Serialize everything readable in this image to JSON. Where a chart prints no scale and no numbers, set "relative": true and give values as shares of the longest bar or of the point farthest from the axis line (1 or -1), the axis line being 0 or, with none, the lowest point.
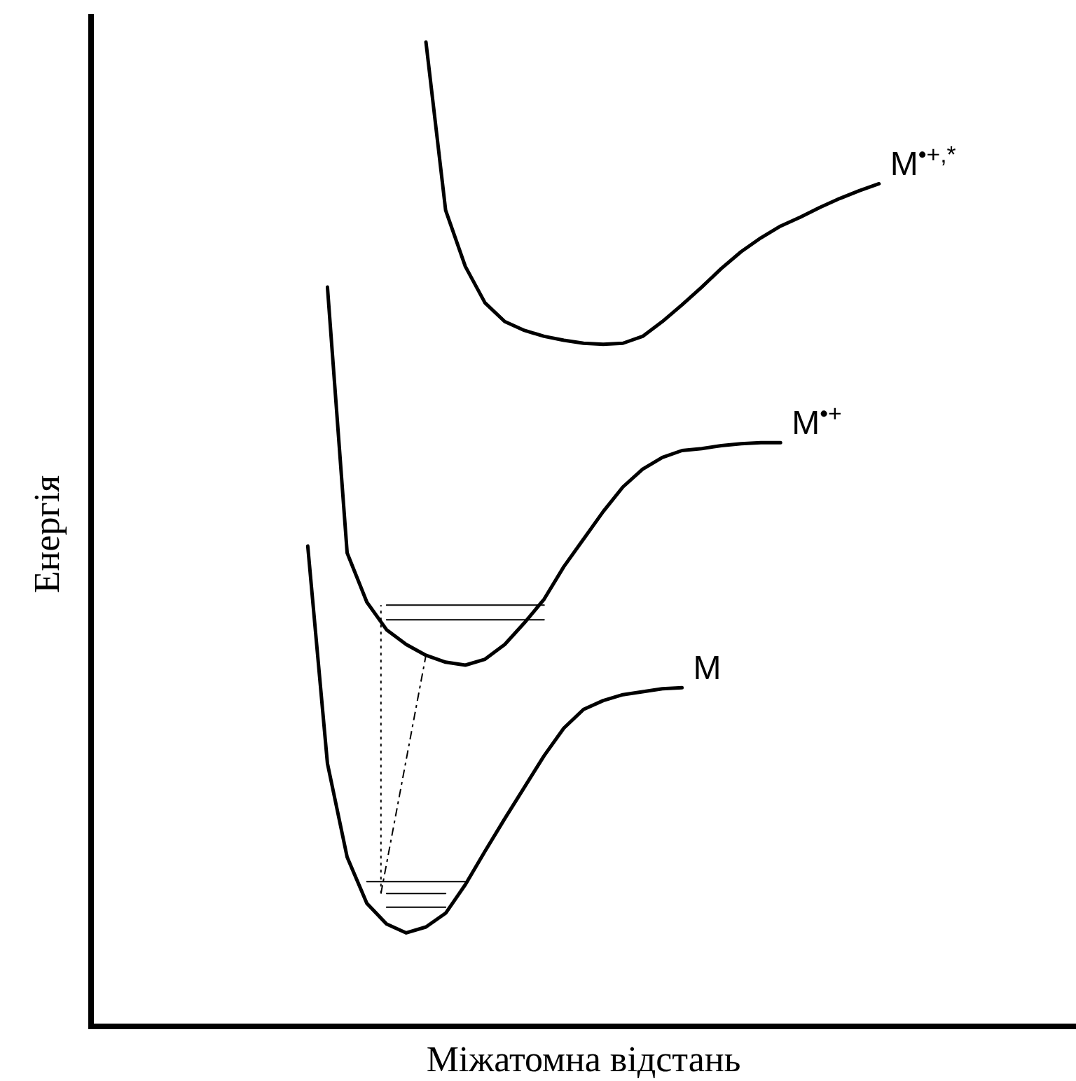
{
  "chart_data": {
    "type": "line",
    "relative": true,
    "xlabel": "Міжатомна відстань",
    "ylabel": "Енергія",
    "categories": [
      null,
      null,
      null,
      null,
      null,
      null,
      null,
      null,
      null,
      null,
      null,
      null,
      null,
      null,
      null,
      null,
      null,
      null,
      null,
      null,
      null,
      null,
      null,
      null,
      null,
      null,
      null,
      null,
      null,
      null,
      null,
      null,
      null,
      null,
      null,
      null,
      null,
      null,
      null,
      null,
      null,
      null,
      null,
      null,
      null,
      null,
      null,
      null,
      null,
      null,
      null
    ],
    "series": [
      {
        "name": "M",
        "color": "#000000",
        "values": [
          null,
          null,
          null,
          null,
          null,
          null,
          null,
          null,
          null,
          null,
          null,
          0.488,
          0.267,
          0.172,
          0.125,
          0.104,
          0.095,
          0.101,
          0.115,
          0.144,
          0.178,
          0.211,
          0.243,
          0.275,
          0.303,
          0.322,
          0.331,
          0.337,
          0.34,
          0.343,
          0.344,
          null,
          null,
          null,
          null,
          null,
          null,
          null,
          null,
          null,
          null,
          null,
          null,
          null,
          null,
          null,
          null,
          null,
          null,
          null,
          null
        ]
      },
      {
        "name": "M$^{•+}$",
        "color": "#000000",
        "values": [
          null,
          null,
          null,
          null,
          null,
          null,
          null,
          null,
          null,
          null,
          null,
          null,
          0.751,
          0.481,
          0.431,
          0.403,
          0.388,
          0.377,
          0.37,
          0.367,
          0.373,
          0.388,
          0.41,
          0.434,
          0.467,
          0.495,
          0.523,
          0.548,
          0.566,
          0.578,
          0.585,
          0.587,
          0.59,
          0.592,
          0.593,
          0.593,
          null,
          null,
          null,
          null,
          null,
          null,
          null,
          null,
          null,
          null,
          null,
          null,
          null,
          null,
          null
        ]
      },
      {
        "name": "M$^{•+,*}$",
        "color": "#000000",
        "values": [
          null,
          null,
          null,
          null,
          null,
          null,
          null,
          null,
          null,
          null,
          null,
          null,
          null,
          null,
          null,
          null,
          null,
          1,
          0.829,
          0.772,
          0.735,
          0.716,
          0.707,
          0.701,
          0.697,
          0.694,
          0.693,
          0.694,
          0.701,
          0.716,
          0.733,
          0.751,
          0.77,
          0.787,
          0.801,
          0.813,
          0.822,
          0.832,
          0.841,
          0.849,
          0.856,
          null,
          null,
          null,
          null,
          null,
          null,
          null,
          null,
          null,
          null
        ]
      },
      {
        "color": "#000000",
        "values": [
          null,
          null,
          null,
          null,
          null,
          null,
          null,
          null,
          null,
          null,
          null,
          null,
          null,
          null,
          null,
          0.428,
          0.428,
          0.428,
          0.428,
          0.428,
          0.428,
          0.428,
          0.428,
          0.428,
          null,
          null,
          null,
          null,
          null,
          null,
          null,
          null,
          null,
          null,
          null,
          null,
          null,
          null,
          null,
          null,
          null,
          null,
          null,
          null,
          null,
          null,
          null,
          null,
          null,
          null,
          null
        ]
      },
      {
        "color": "#000000",
        "values": [
          null,
          null,
          null,
          null,
          null,
          null,
          null,
          null,
          null,
          null,
          null,
          null,
          null,
          null,
          null,
          0.413,
          0.413,
          0.413,
          0.413,
          0.413,
          0.413,
          0.413,
          0.413,
          0.413,
          null,
          null,
          null,
          null,
          null,
          null,
          null,
          null,
          null,
          null,
          null,
          null,
          null,
          null,
          null,
          null,
          null,
          null,
          null,
          null,
          null,
          null,
          null,
          null,
          null,
          null,
          null
        ]
      },
      {
        "color": "#000000",
        "values": [
          null,
          null,
          null,
          null,
          null,
          null,
          null,
          null,
          null,
          null,
          null,
          null,
          null,
          null,
          0.147,
          0.147,
          0.147,
          0.147,
          0.147,
          0.147,
          null,
          null,
          null,
          null,
          null,
          null,
          null,
          null,
          null,
          null,
          null,
          null,
          null,
          null,
          null,
          null,
          null,
          null,
          null,
          null,
          null,
          null,
          null,
          null,
          null,
          null,
          null,
          null,
          null,
          null,
          null
        ]
      },
      {
        "color": "#000000",
        "values": [
          null,
          null,
          null,
          null,
          null,
          null,
          null,
          null,
          null,
          null,
          null,
          null,
          null,
          null,
          null,
          0.135,
          0.135,
          0.135,
          0.135,
          null,
          null,
          null,
          null,
          null,
          null,
          null,
          null,
          null,
          null,
          null,
          null,
          null,
          null,
          null,
          null,
          null,
          null,
          null,
          null,
          null,
          null,
          null,
          null,
          null,
          null,
          null,
          null,
          null,
          null,
          null,
          null
        ]
      },
      {
        "color": "#000000",
        "values": [
          null,
          null,
          null,
          null,
          null,
          null,
          null,
          null,
          null,
          null,
          null,
          null,
          null,
          null,
          null,
          0.121,
          0.121,
          0.121,
          0.121,
          null,
          null,
          null,
          null,
          null,
          null,
          null,
          null,
          null,
          null,
          null,
          null,
          null,
          null,
          null,
          null,
          null,
          null,
          null,
          null,
          null,
          null,
          null,
          null,
          null,
          null,
          null,
          null,
          null,
          null,
          null,
          null
        ]
      }
    ]
  }
}
